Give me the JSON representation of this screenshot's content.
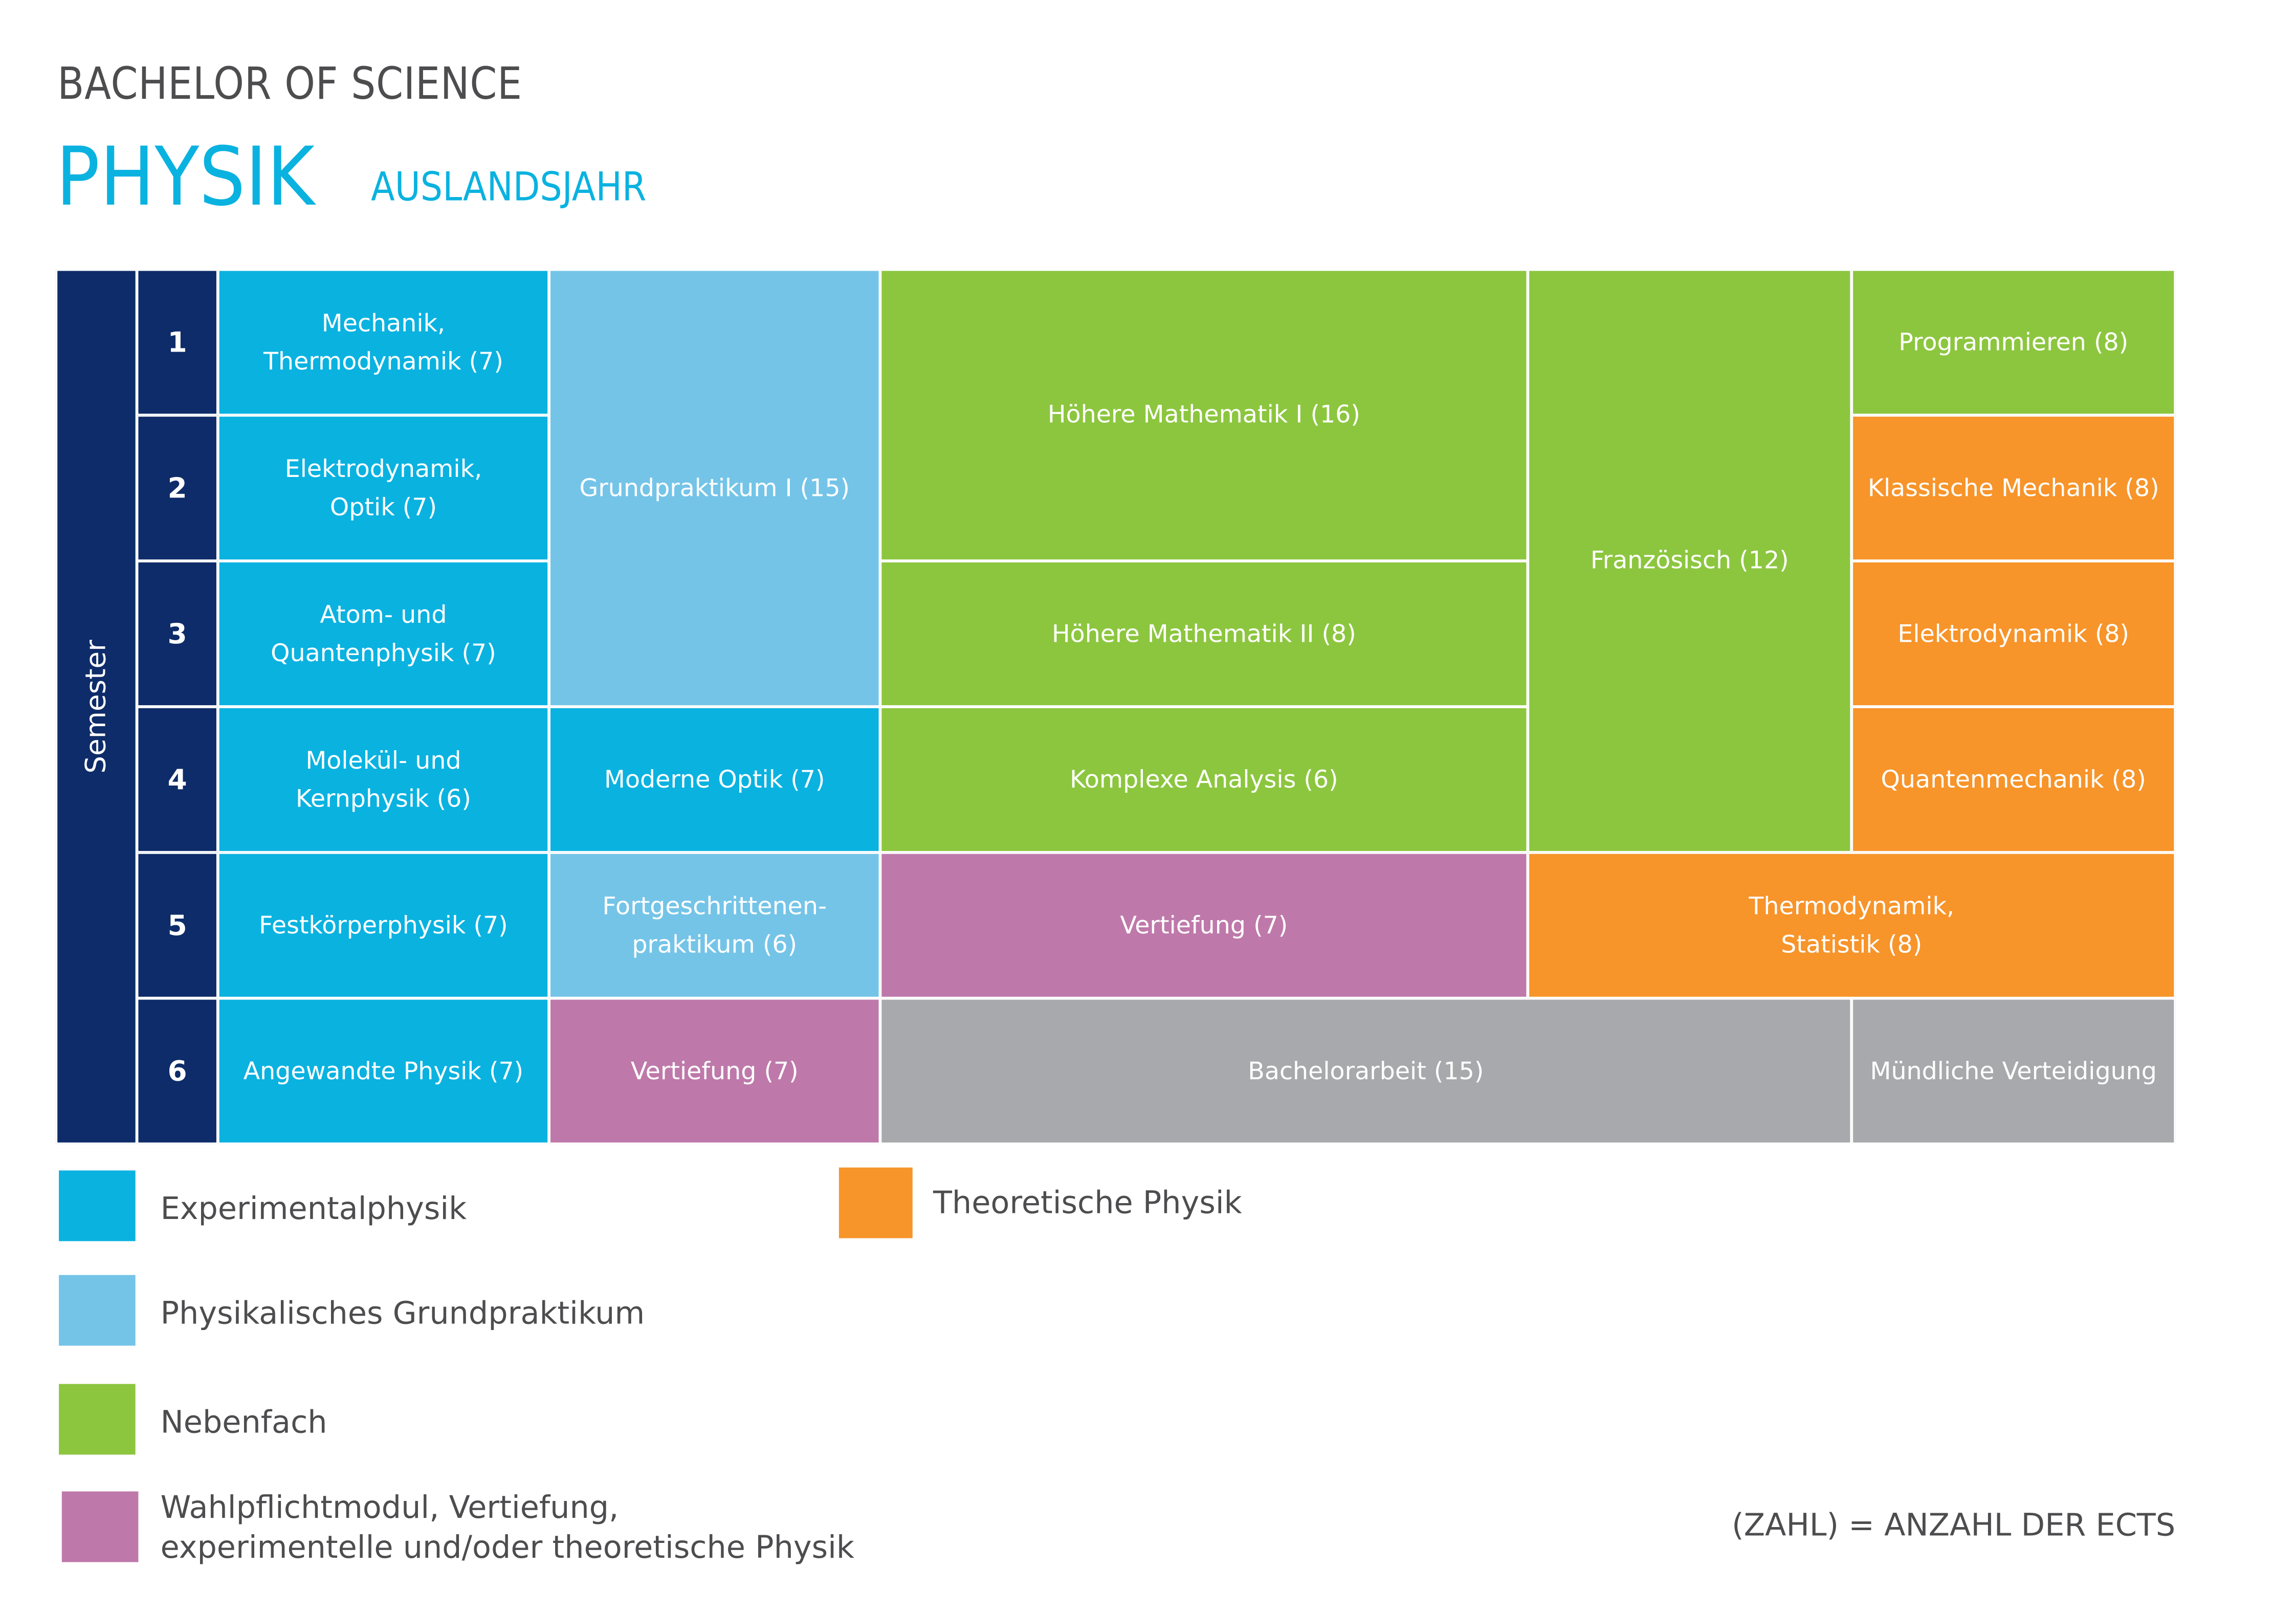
{
  "header": {
    "subtitle": "BACHELOR OF SCIENCE",
    "title": "PHYSIK",
    "tag": "AUSLANDSJAHR"
  },
  "semester_label": "Semester",
  "semesters": [
    "1",
    "2",
    "3",
    "4",
    "5",
    "6"
  ],
  "modules": {
    "mechanik": "Mechanik,\nThermodynamik (7)",
    "elektrodynamik_exp": "Elektrodynamik,\nOptik (7)",
    "atom": "Atom- und\nQuantenphysik (7)",
    "molekuel": "Molekül- und\nKernphysik (6)",
    "festkoerper": "Festkörperphysik (7)",
    "angewandte": "Angewandte Physik (7)",
    "grundpraktikum": "Grundpraktikum I (15)",
    "moderne_optik": "Moderne Optik (7)",
    "fortgeschrittenen": "Fortgeschrittenen-\npraktikum (6)",
    "vertiefung_6": "Vertiefung (7)",
    "hm1": "Höhere Mathematik I (16)",
    "hm2": "Höhere Mathematik II (8)",
    "komplexe": "Komplexe Analysis (6)",
    "vertiefung_5": "Vertiefung (7)",
    "bachelorarbeit": "Bachelorarbeit (15)",
    "franzoesisch": "Französisch (12)",
    "thermo_stat": "Thermodynamik,\nStatistik (8)",
    "programmieren": "Programmieren (8)",
    "klassische": "Klassische Mechanik (8)",
    "elektrodynamik_theo": "Elektrodynamik (8)",
    "quantenmechanik": "Quantenmechanik (8)",
    "muendliche": "Mündliche Verteidigung"
  },
  "legend": [
    {
      "label": "Experimentalphysik",
      "color": "#0ab2e0"
    },
    {
      "label": "Physikalisches Grundpraktikum",
      "color": "#74c4e8"
    },
    {
      "label": "Nebenfach",
      "color": "#8cc63f"
    },
    {
      "label": "Wahlpflichtmodul, Vertiefung,\nexperimentelle und/oder theoretische Physik",
      "color": "#be79aa"
    },
    {
      "label": "Theoretische Physik",
      "color": "#f7942a"
    }
  ],
  "footnote": "(ZAHL) = ANZAHL DER ECTS"
}
